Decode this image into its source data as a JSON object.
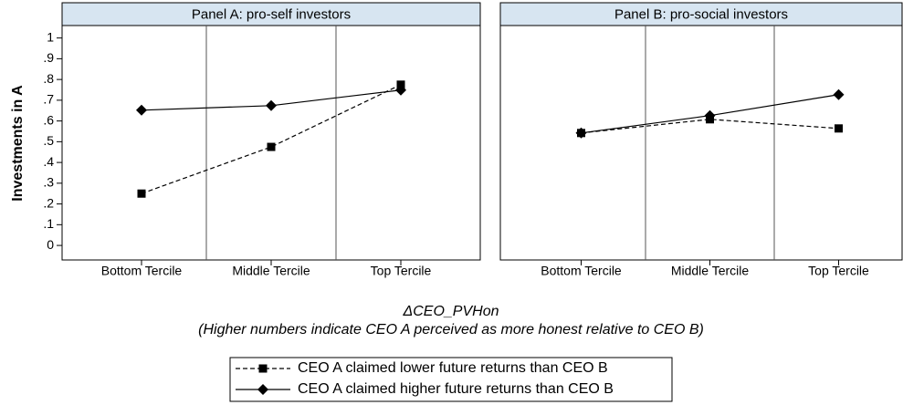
{
  "y_label": "Investments in A",
  "x_label": "ΔCEO_PVHon",
  "x_note": "(Higher numbers indicate CEO A perceived as more honest relative to CEO B)",
  "chart_data": [
    {
      "type": "line",
      "title": "Panel A: pro-self investors",
      "categories": [
        "Bottom Tercile",
        "Middle Tercile",
        "Top Tercile"
      ],
      "series": [
        {
          "name": "CEO A claimed lower future returns than CEO B",
          "color": "#000000",
          "dash": true,
          "marker": "square",
          "values": [
            0.25,
            0.475,
            0.775
          ]
        },
        {
          "name": "CEO A claimed higher future returns than CEO B",
          "color": "#000000",
          "dash": false,
          "marker": "diamond",
          "values": [
            0.652,
            0.674,
            0.749
          ]
        }
      ],
      "ylim": [
        -0.07,
        1.06
      ],
      "yticks": [
        0,
        {
          "value": 0.1,
          "label": ".1"
        },
        {
          "value": 0.2,
          "label": ".2"
        },
        {
          "value": 0.3,
          "label": ".3"
        },
        {
          "value": 0.4,
          "label": ".4"
        },
        {
          "value": 0.5,
          "label": ".5"
        },
        {
          "value": 0.6,
          "label": ".6"
        },
        {
          "value": 0.7,
          "label": ".7"
        },
        {
          "value": 0.8,
          "label": ".8"
        },
        {
          "value": 0.9,
          "label": ".9"
        },
        1
      ]
    },
    {
      "type": "line",
      "title": "Panel B: pro-social investors",
      "categories": [
        "Bottom Tercile",
        "Middle Tercile",
        "Top Tercile"
      ],
      "series": [
        {
          "color": "#000000",
          "dash": true,
          "marker": "square",
          "values": [
            0.542,
            0.608,
            0.564
          ]
        },
        {
          "color": "#000000",
          "dash": false,
          "marker": "diamond",
          "values": [
            0.542,
            0.626,
            0.727
          ]
        }
      ],
      "ylim": [
        -0.07,
        1.06
      ]
    }
  ]
}
